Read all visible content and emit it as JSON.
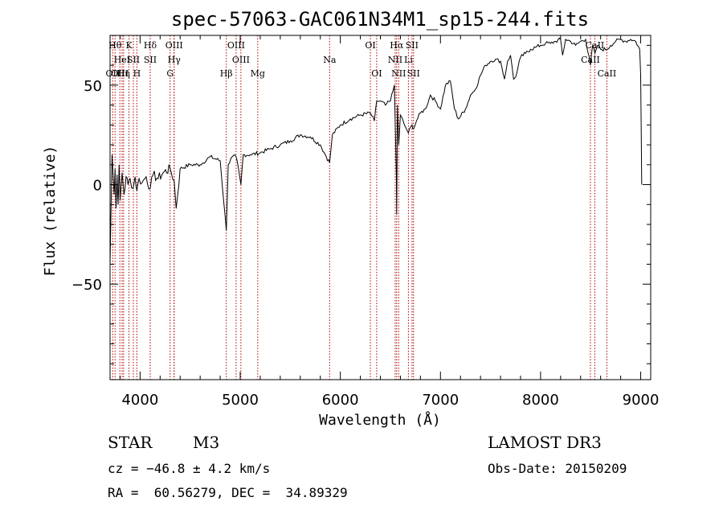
{
  "chart_data": {
    "type": "line",
    "title": "spec-57063-GAC061N34M1_sp15-244.fits",
    "xlabel": "Wavelength (Å)",
    "ylabel": "Flux (relative)",
    "xlim": [
      3700,
      9100
    ],
    "ylim": [
      -98,
      75
    ],
    "xticks": [
      4000,
      5000,
      6000,
      7000,
      8000,
      9000
    ],
    "yticks": [
      -50,
      0,
      50
    ],
    "series": [
      {
        "name": "spectrum",
        "x": [
          3700,
          3720,
          3740,
          3750,
          3760,
          3770,
          3780,
          3790,
          3800,
          3820,
          3840,
          3860,
          3880,
          3900,
          3930,
          3950,
          3968,
          3990,
          4020,
          4060,
          4101,
          4130,
          4180,
          4230,
          4300,
          4340,
          4360,
          4400,
          4500,
          4600,
          4700,
          4800,
          4861,
          4880,
          4920,
          4960,
          5007,
          5030,
          5100,
          5200,
          5300,
          5400,
          5500,
          5600,
          5700,
          5800,
          5850,
          5893,
          5920,
          6000,
          6100,
          6200,
          6300,
          6340,
          6363,
          6400,
          6450,
          6500,
          6540,
          6560,
          6563,
          6570,
          6583,
          6600,
          6640,
          6680,
          6716,
          6731,
          6760,
          6800,
          6850,
          6900,
          6950,
          7000,
          7050,
          7100,
          7140,
          7180,
          7250,
          7300,
          7350,
          7400,
          7450,
          7500,
          7550,
          7600,
          7640,
          7670,
          7700,
          7730,
          7750,
          7800,
          7850,
          7900,
          7950,
          8000,
          8050,
          8100,
          8150,
          8200,
          8220,
          8250,
          8300,
          8350,
          8400,
          8450,
          8498,
          8520,
          8542,
          8570,
          8600,
          8662,
          8700,
          8750,
          8800,
          8850,
          8900,
          8950,
          8990,
          9000,
          9010
        ],
        "values": [
          -40,
          15,
          -5,
          8,
          -12,
          5,
          -10,
          10,
          -8,
          6,
          -5,
          4,
          0,
          3,
          -2,
          4,
          -3,
          3,
          1,
          4,
          -2,
          5,
          3,
          6,
          8,
          2,
          -12,
          8,
          10,
          10,
          14,
          12,
          -23,
          10,
          14,
          14,
          0,
          15,
          15,
          16,
          18,
          20,
          22,
          25,
          24,
          20,
          15,
          11,
          25,
          30,
          33,
          35,
          36,
          32,
          42,
          42,
          40,
          42,
          50,
          5,
          -15,
          40,
          20,
          35,
          30,
          26,
          30,
          28,
          32,
          36,
          38,
          45,
          42,
          38,
          50,
          52,
          38,
          33,
          38,
          45,
          48,
          55,
          60,
          62,
          63,
          62,
          53,
          62,
          65,
          53,
          54,
          64,
          66,
          68,
          69,
          70,
          71,
          71,
          72,
          73,
          65,
          73,
          72,
          70,
          72,
          73,
          60,
          70,
          66,
          70,
          68,
          68,
          70,
          72,
          73,
          72,
          73,
          72,
          68,
          55,
          0
        ]
      }
    ],
    "lines": [
      {
        "x": 3727,
        "label": "OII",
        "row": 3
      },
      {
        "x": 3750,
        "label": "Hθ",
        "row": 1
      },
      {
        "x": 3798,
        "label": "OIII",
        "row": 3
      },
      {
        "x": 3835,
        "label": "Hη",
        "row": 3
      },
      {
        "x": 3820,
        "label": "HeI",
        "row": 2
      },
      {
        "x": 3889,
        "label": "K",
        "row": 1
      },
      {
        "x": 3933,
        "label": "SII",
        "row": 2
      },
      {
        "x": 3968,
        "label": "H",
        "row": 3
      },
      {
        "x": 4101,
        "label": "Hδ",
        "row": 1
      },
      {
        "x": 4101,
        "label": "SII",
        "row": 2
      },
      {
        "x": 4300,
        "label": "G",
        "row": 3
      },
      {
        "x": 4340,
        "label": "OIII",
        "row": 1
      },
      {
        "x": 4340,
        "label": "Hγ",
        "row": 2
      },
      {
        "x": 4861,
        "label": "Hβ",
        "row": 3
      },
      {
        "x": 4959,
        "label": "OIII",
        "row": 1
      },
      {
        "x": 5007,
        "label": "OIII",
        "row": 2
      },
      {
        "x": 5175,
        "label": "Mg",
        "row": 3
      },
      {
        "x": 5893,
        "label": "Na",
        "row": 2
      },
      {
        "x": 6300,
        "label": "OI",
        "row": 1
      },
      {
        "x": 6363,
        "label": "OI",
        "row": 3
      },
      {
        "x": 6548,
        "label": "NII",
        "row": 2
      },
      {
        "x": 6563,
        "label": "Hα",
        "row": 1
      },
      {
        "x": 6583,
        "label": "NII",
        "row": 3
      },
      {
        "x": 6680,
        "label": "Li",
        "row": 2
      },
      {
        "x": 6716,
        "label": "SII",
        "row": 1
      },
      {
        "x": 6731,
        "label": "SII",
        "row": 3
      },
      {
        "x": 8498,
        "label": "CaII",
        "row": 2
      },
      {
        "x": 8542,
        "label": "CaII",
        "row": 1
      },
      {
        "x": 8662,
        "label": "CaII",
        "row": 3
      }
    ]
  },
  "info": {
    "object_class": "STAR",
    "subclass": "M3",
    "survey": "LAMOST DR3",
    "redshift": "cz = −46.8 ± 4.2 km/s",
    "obs_date": "Obs-Date: 20150209",
    "coords": "RA =  60.56279, DEC =  34.89329"
  }
}
